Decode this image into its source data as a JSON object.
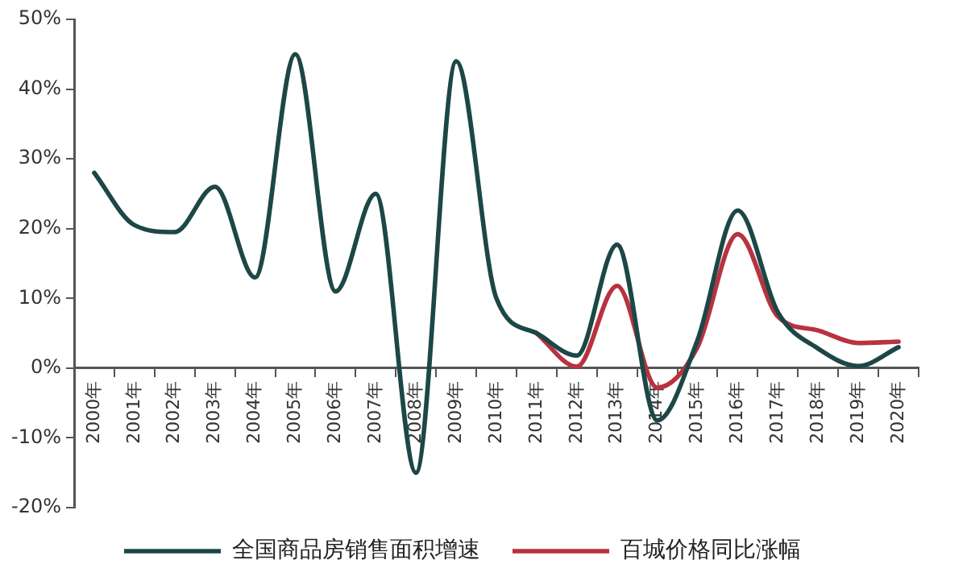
{
  "chart_data": {
    "type": "line",
    "categories": [
      "2000年",
      "2001年",
      "2002年",
      "2003年",
      "2004年",
      "2005年",
      "2006年",
      "2007年",
      "2008年",
      "2009年",
      "2010年",
      "2011年",
      "2012年",
      "2013年",
      "2014年",
      "2015年",
      "2016年",
      "2017年",
      "2018年",
      "2019年",
      "2020年"
    ],
    "series": [
      {
        "name": "全国商品房销售面积增速",
        "color": "#1d4747",
        "values": [
          28,
          20.5,
          19.5,
          26,
          13,
          45,
          11,
          25,
          -15,
          44,
          10,
          5,
          1.8,
          17.7,
          -7.5,
          4,
          22.6,
          8,
          2.8,
          0.3,
          3
        ]
      },
      {
        "name": "百城价格同比涨幅",
        "color": "#b8323f",
        "values": [
          null,
          null,
          null,
          null,
          null,
          null,
          null,
          null,
          null,
          null,
          null,
          5,
          0.2,
          11.8,
          -2.8,
          3,
          19.2,
          7.4,
          5.4,
          3.6,
          3.8
        ]
      }
    ],
    "ylim": [
      -20,
      50
    ],
    "yticks": [
      {
        "value": -20,
        "label": "-20%"
      },
      {
        "value": -10,
        "label": "-10%"
      },
      {
        "value": 0,
        "label": "0%"
      },
      {
        "value": 10,
        "label": "10%"
      },
      {
        "value": 20,
        "label": "20%"
      },
      {
        "value": 30,
        "label": "30%"
      },
      {
        "value": 40,
        "label": "40%"
      },
      {
        "value": 50,
        "label": "50%"
      }
    ],
    "grid": false,
    "legend": "bottom",
    "marker": "none",
    "line_style": "solid"
  }
}
